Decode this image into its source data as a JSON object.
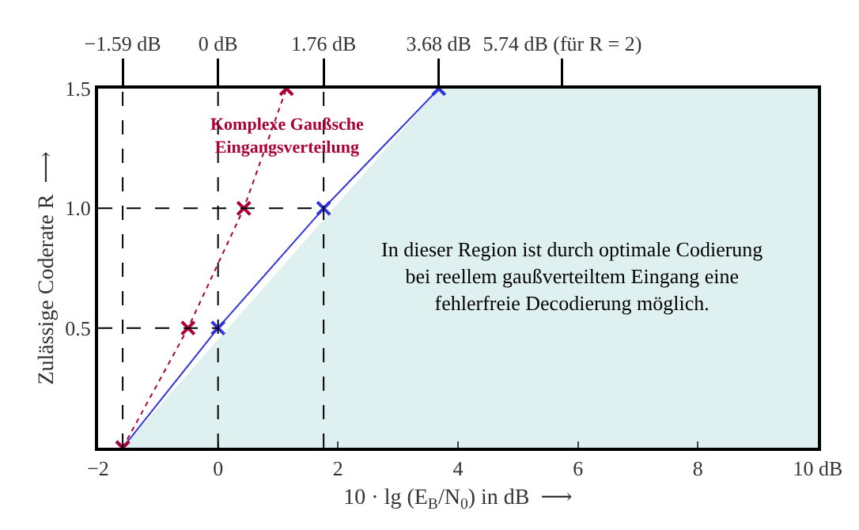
{
  "chart_data": {
    "type": "line",
    "xlabel": "10 · lg (E$_{B}$/N$_{0}$) in dB  ⟶",
    "ylabel": "Zulässige Coderate R  ⟶",
    "xlim": [
      -2,
      10
    ],
    "xticks": [
      {
        "value": -2,
        "label": "−2"
      },
      0,
      2,
      4,
      6,
      8,
      {
        "value": 10,
        "label": "10 dB"
      }
    ],
    "ylim": [
      0,
      1.5
    ],
    "yticks": [
      {
        "value": 0.5,
        "label": "0.5"
      },
      {
        "value": 1,
        "label": "1.0"
      },
      1.5
    ],
    "x2lim": [
      -2,
      10
    ],
    "x2ticks": [
      {
        "value": -1.59,
        "label": "−1.59 dB"
      },
      {
        "value": 0,
        "label": "0 dB"
      },
      {
        "value": 1.76,
        "label": "1.76 dB"
      },
      {
        "value": 3.68,
        "label": "3.68 dB"
      },
      {
        "value": 5.74,
        "label": "5.74 dB (für R = 2)"
      }
    ],
    "series": [
      {
        "type": "area",
        "color": "#dff0f0",
        "x": [
          -1.59,
          3.68,
          10
        ],
        "values": [
          0,
          1.5,
          1.5
        ]
      },
      {
        "color": "#3333dd",
        "x": [
          -1.59,
          0,
          1.76,
          3.68
        ],
        "values": [
          0,
          0.5,
          1,
          1.5
        ],
        "marker": "cross",
        "line_style": "solid"
      },
      {
        "name": "Komplexe Gaußsche Eingangsverteilung",
        "color": "#aa0033",
        "x": [
          -1.59,
          -0.5,
          0.43,
          1.14
        ],
        "values": [
          0,
          0.5,
          1,
          1.5
        ],
        "marker": "cross",
        "line_style": "dotted"
      }
    ],
    "ref_lines": [
      {
        "axis": "x",
        "value": -1.59,
        "line_style": "dashed"
      },
      {
        "axis": "x",
        "value": 0,
        "line_style": "dashed"
      },
      {
        "axis": "x",
        "value": 1.76,
        "line_style": "dashed"
      },
      {
        "axis": "y",
        "value": 0.5,
        "line_style": "dashed"
      },
      {
        "axis": "y",
        "value": 1,
        "line_style": "dashed"
      }
    ],
    "annotations": [
      "In dieser Region ist durch optimale Codierung bei reellem gaußverteiltem Eingang eine fehlerfreie Decodierung möglich."
    ],
    "legend": false,
    "grid": false
  }
}
